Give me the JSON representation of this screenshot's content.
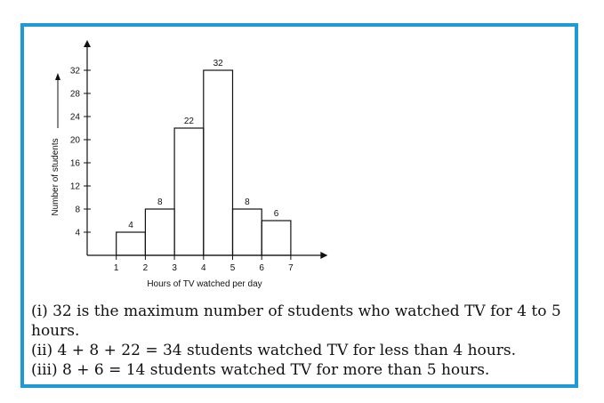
{
  "chart_data": {
    "type": "bar",
    "bins": [
      {
        "from": 1,
        "to": 2,
        "value": 4
      },
      {
        "from": 2,
        "to": 3,
        "value": 8
      },
      {
        "from": 3,
        "to": 4,
        "value": 22
      },
      {
        "from": 4,
        "to": 5,
        "value": 32
      },
      {
        "from": 5,
        "to": 6,
        "value": 8
      },
      {
        "from": 6,
        "to": 7,
        "value": 6
      }
    ],
    "x_ticks": [
      1,
      2,
      3,
      4,
      5,
      6,
      7
    ],
    "y_ticks": [
      4,
      8,
      12,
      16,
      20,
      24,
      28,
      32
    ],
    "xlim": [
      0,
      7.9
    ],
    "ylim": [
      0,
      32
    ],
    "xlabel": "Hours of TV watched per day",
    "ylabel": "Number of students",
    "grid": false
  },
  "notes": [
    "(i) 32 is the maximum number of students who watched TV for 4 to 5 hours.",
    "(ii) 4 + 8 + 22 = 34 students watched TV for less than 4 hours.",
    "(iii) 8 + 6 = 14 students watched TV for more than 5 hours."
  ],
  "colors": {
    "border": "#1e9ad6",
    "ink": "#111111"
  }
}
